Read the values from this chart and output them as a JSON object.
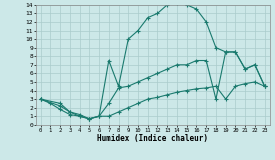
{
  "xlabel": "Humidex (Indice chaleur)",
  "background_color": "#cce8e8",
  "grid_color": "#aacccc",
  "line_color": "#1a7a6e",
  "xlim": [
    -0.5,
    23.5
  ],
  "ylim": [
    0,
    14
  ],
  "xticks": [
    0,
    1,
    2,
    3,
    4,
    5,
    6,
    7,
    8,
    9,
    10,
    11,
    12,
    13,
    14,
    15,
    16,
    17,
    18,
    19,
    20,
    21,
    22,
    23
  ],
  "yticks": [
    0,
    1,
    2,
    3,
    4,
    5,
    6,
    7,
    8,
    9,
    10,
    11,
    12,
    13,
    14
  ],
  "curve1_x": [
    0,
    1,
    2,
    3,
    4,
    5,
    6,
    7,
    8,
    9,
    10,
    11,
    12,
    13,
    14,
    15,
    16,
    17,
    18,
    19,
    20,
    21,
    22,
    23
  ],
  "curve1_y": [
    3.0,
    2.5,
    1.8,
    1.2,
    1.0,
    0.7,
    1.0,
    7.5,
    4.5,
    10.0,
    11.0,
    12.5,
    13.0,
    14.0,
    14.2,
    14.0,
    13.5,
    12.0,
    9.0,
    8.5,
    8.5,
    6.5,
    7.0,
    4.5
  ],
  "curve2_x": [
    0,
    2,
    3,
    4,
    5,
    6,
    7,
    8,
    9,
    10,
    11,
    12,
    13,
    14,
    15,
    16,
    17,
    18,
    19,
    20,
    21,
    22,
    23
  ],
  "curve2_y": [
    3.0,
    2.5,
    1.5,
    1.0,
    0.7,
    1.0,
    2.5,
    4.3,
    4.5,
    5.0,
    5.5,
    6.0,
    6.5,
    7.0,
    7.0,
    7.5,
    7.5,
    3.0,
    8.5,
    8.5,
    6.5,
    7.0,
    4.5
  ],
  "curve3_x": [
    0,
    2,
    3,
    4,
    5,
    6,
    7,
    8,
    9,
    10,
    11,
    12,
    13,
    14,
    15,
    16,
    17,
    18,
    19,
    20,
    21,
    22,
    23
  ],
  "curve3_y": [
    3.0,
    2.2,
    1.5,
    1.2,
    0.7,
    1.0,
    1.0,
    1.5,
    2.0,
    2.5,
    3.0,
    3.2,
    3.5,
    3.8,
    4.0,
    4.2,
    4.3,
    4.5,
    3.0,
    4.5,
    4.8,
    5.0,
    4.5
  ]
}
